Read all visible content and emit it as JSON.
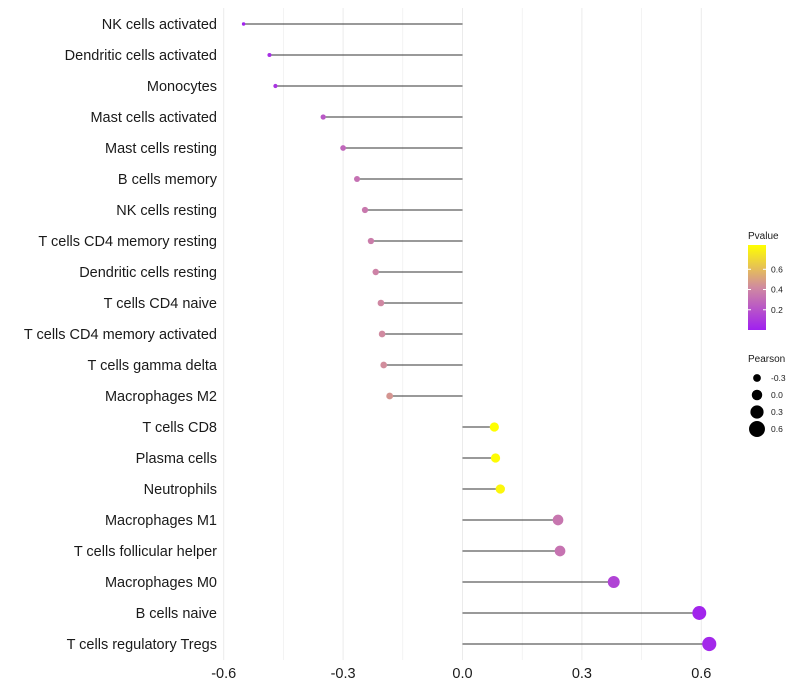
{
  "chart_data": {
    "type": "lollipop",
    "title": "",
    "xlabel": "",
    "ylabel": "",
    "xlim": [
      -0.6,
      0.65
    ],
    "xticks": [
      "-0.6",
      "-0.3",
      "0.0",
      "0.3",
      "0.6"
    ],
    "xtick_values": [
      -0.6,
      -0.3,
      0.0,
      0.3,
      0.6
    ],
    "grid": true,
    "points": [
      {
        "label": "NK cells activated",
        "pearson": -0.55,
        "pvalue": 0.01
      },
      {
        "label": "Dendritic cells activated",
        "pearson": -0.485,
        "pvalue": 0.06
      },
      {
        "label": "Monocytes",
        "pearson": -0.47,
        "pvalue": 0.08
      },
      {
        "label": "Mast cells activated",
        "pearson": -0.35,
        "pvalue": 0.22
      },
      {
        "label": "Mast cells resting",
        "pearson": -0.3,
        "pvalue": 0.28
      },
      {
        "label": "B cells memory",
        "pearson": -0.265,
        "pvalue": 0.32
      },
      {
        "label": "NK cells resting",
        "pearson": -0.245,
        "pvalue": 0.35
      },
      {
        "label": "T cells CD4 memory resting",
        "pearson": -0.23,
        "pvalue": 0.37
      },
      {
        "label": "Dendritic cells resting",
        "pearson": -0.218,
        "pvalue": 0.39
      },
      {
        "label": "T cells CD4 naive",
        "pearson": -0.205,
        "pvalue": 0.41
      },
      {
        "label": "T cells CD4 memory activated",
        "pearson": -0.202,
        "pvalue": 0.42
      },
      {
        "label": "T cells gamma delta",
        "pearson": -0.198,
        "pvalue": 0.43
      },
      {
        "label": "Macrophages M2",
        "pearson": -0.183,
        "pvalue": 0.46
      },
      {
        "label": "T cells CD8",
        "pearson": 0.08,
        "pvalue": 0.84
      },
      {
        "label": "Plasma cells",
        "pearson": 0.083,
        "pvalue": 0.83
      },
      {
        "label": "Neutrophils",
        "pearson": 0.095,
        "pvalue": 0.81
      },
      {
        "label": "Macrophages M1",
        "pearson": 0.24,
        "pvalue": 0.34
      },
      {
        "label": "T cells follicular helper",
        "pearson": 0.245,
        "pvalue": 0.33
      },
      {
        "label": "Macrophages M0",
        "pearson": 0.38,
        "pvalue": 0.14
      },
      {
        "label": "B cells naive",
        "pearson": 0.595,
        "pvalue": 0.02
      },
      {
        "label": "T cells regulatory  Tregs",
        "pearson": 0.62,
        "pvalue": 0.03
      }
    ],
    "legend": {
      "placement": "right",
      "color_title": "Pvalue",
      "color_ticks": [
        "0.6",
        "0.4",
        "0.2"
      ],
      "color_tick_values": [
        0.6,
        0.4,
        0.2
      ],
      "color_range": [
        0.0,
        0.84
      ],
      "color_low": "#a020f0",
      "color_mid": "#d08aa0",
      "color_high": "#ffff00",
      "size_title": "Pearson",
      "size_labels": [
        "-0.3",
        "0.0",
        "0.3",
        "0.6"
      ],
      "size_values": [
        -0.3,
        0.0,
        0.3,
        0.6
      ]
    },
    "colors": {
      "segment": "#333333",
      "grid": "#ebebeb",
      "legend_dot": "#000000"
    }
  }
}
